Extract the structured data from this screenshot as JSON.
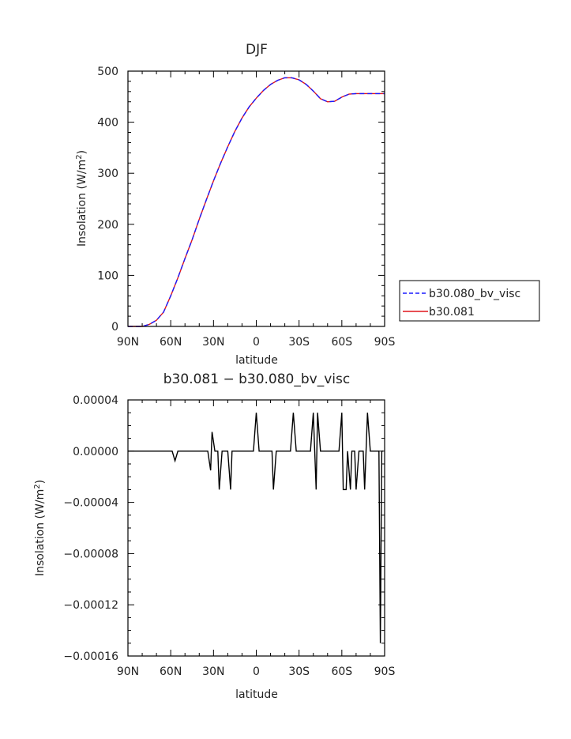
{
  "chart_data": [
    {
      "type": "line",
      "title": "DJF",
      "xlabel": "latitude",
      "ylabel": "Insolation (W/m",
      "ylabel_sup": "2",
      "ylabel_tail": ")",
      "x_ticks": [
        "90N",
        "60N",
        "30N",
        "0",
        "30S",
        "60S",
        "90S"
      ],
      "xlim": [
        -90,
        90
      ],
      "ylim": [
        0,
        500
      ],
      "y_ticks": [
        "0",
        "100",
        "200",
        "300",
        "400",
        "500"
      ],
      "x": [
        -90,
        -85,
        -80,
        -75,
        -70,
        -65,
        -60,
        -55,
        -50,
        -45,
        -40,
        -35,
        -30,
        -25,
        -20,
        -15,
        -10,
        -5,
        0,
        5,
        10,
        15,
        20,
        25,
        30,
        35,
        40,
        45,
        50,
        55,
        60,
        65,
        70,
        75,
        80,
        85,
        90
      ],
      "series": [
        {
          "name": "b30.080_bv_visc",
          "color": "#1a1aff",
          "style": "dashed",
          "values": [
            0,
            0,
            0,
            4,
            12,
            28,
            60,
            95,
            133,
            170,
            210,
            248,
            285,
            320,
            352,
            382,
            408,
            430,
            447,
            462,
            474,
            482,
            487,
            487,
            483,
            474,
            461,
            446,
            440,
            441,
            449,
            455,
            456,
            456,
            456,
            456,
            456
          ]
        },
        {
          "name": "b30.081",
          "color": "#e0161c",
          "style": "solid",
          "values": [
            0,
            0,
            0,
            4,
            12,
            28,
            60,
            95,
            133,
            170,
            210,
            248,
            285,
            320,
            352,
            382,
            408,
            430,
            447,
            462,
            474,
            482,
            487,
            487,
            483,
            474,
            461,
            446,
            440,
            441,
            449,
            455,
            456,
            456,
            456,
            456,
            456
          ]
        }
      ],
      "legend": "right"
    },
    {
      "type": "line",
      "title": "b30.081 − b30.080_bv_visc",
      "xlabel": "latitude",
      "ylabel": "Insolation (W/m",
      "ylabel_sup": "2",
      "ylabel_tail": ")",
      "x_ticks": [
        "90N",
        "60N",
        "30N",
        "0",
        "30S",
        "60S",
        "90S"
      ],
      "xlim": [
        -90,
        90
      ],
      "ylim": [
        -0.00016,
        4e-05
      ],
      "y_ticks": [
        "0.00004",
        "0.00000",
        "−0.00004",
        "−0.00008",
        "−0.00012",
        "−0.00016"
      ],
      "series": [
        {
          "color": "#000000",
          "x": [
            -90,
            -59,
            -57,
            -55,
            -53,
            -34,
            -32,
            -31,
            -29,
            -27,
            -26,
            -24,
            -20,
            -18,
            -17,
            -14,
            -2,
            0,
            2,
            11,
            12,
            14,
            24,
            26,
            28,
            38,
            40,
            42,
            43,
            45,
            46,
            48,
            58,
            60,
            61,
            63,
            64,
            66,
            67,
            69,
            70,
            72,
            73,
            75,
            76,
            78,
            80,
            86,
            87,
            88,
            89
          ],
          "values": [
            0,
            0,
            -7.5e-06,
            0,
            0,
            0,
            -1.5e-05,
            1.5e-05,
            0,
            0,
            -3e-05,
            0,
            0,
            -3e-05,
            0,
            0,
            0,
            3e-05,
            0,
            0,
            -3e-05,
            0,
            0,
            3e-05,
            0,
            0,
            3e-05,
            -3e-05,
            3e-05,
            0,
            0,
            0,
            0,
            3e-05,
            -3e-05,
            -3e-05,
            0,
            -3e-05,
            0,
            0,
            -3e-05,
            0,
            0,
            0,
            -3e-05,
            3e-05,
            0,
            0,
            -0.00015,
            0,
            0
          ]
        }
      ]
    }
  ]
}
